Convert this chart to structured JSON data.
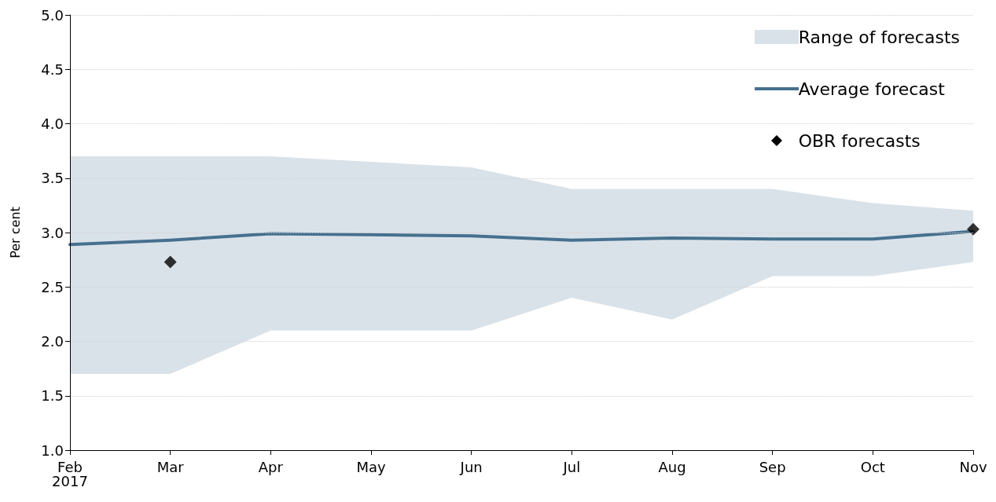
{
  "chart_data": {
    "type": "line",
    "ylabel": "Per cent",
    "categories": [
      "Feb\n2017",
      "Mar",
      "Apr",
      "May",
      "Jun",
      "Jul",
      "Aug",
      "Sep",
      "Oct",
      "Nov"
    ],
    "ylim": [
      1.0,
      5.0
    ],
    "yticks": [
      {
        "value": 1,
        "label": "1.0"
      },
      {
        "value": 1.5,
        "label": "1.5"
      },
      {
        "value": 2,
        "label": "2.0"
      },
      {
        "value": 2.5,
        "label": "2.5"
      },
      {
        "value": 3,
        "label": "3.0"
      },
      {
        "value": 3.5,
        "label": "3.5"
      },
      {
        "value": 4,
        "label": "4.0"
      },
      {
        "value": 4.5,
        "label": "4.5"
      },
      {
        "value": 5,
        "label": "5.0"
      }
    ],
    "grid": "y",
    "legend": "top right",
    "annotations": [
      "Range of forecasts"
    ],
    "series": [
      {
        "name": "Average forecast",
        "type": "line",
        "color": "#46708f",
        "marker": "none",
        "values": [
          2.89,
          2.93,
          2.99,
          2.98,
          2.97,
          2.93,
          2.95,
          2.94,
          2.94,
          3.01
        ],
        "lower": [
          1.7,
          1.7,
          2.1,
          2.1,
          2.1,
          2.4,
          2.2,
          2.6,
          2.6,
          2.73
        ],
        "upper": [
          3.7,
          3.7,
          3.7,
          3.65,
          3.6,
          3.4,
          3.4,
          3.4,
          3.27,
          3.2
        ]
      },
      {
        "name": "OBR forecasts",
        "type": "scatter",
        "color": "#000000",
        "marker": "diamond",
        "values": [
          null,
          2.73,
          null,
          null,
          null,
          null,
          null,
          null,
          null,
          3.03
        ]
      }
    ]
  }
}
